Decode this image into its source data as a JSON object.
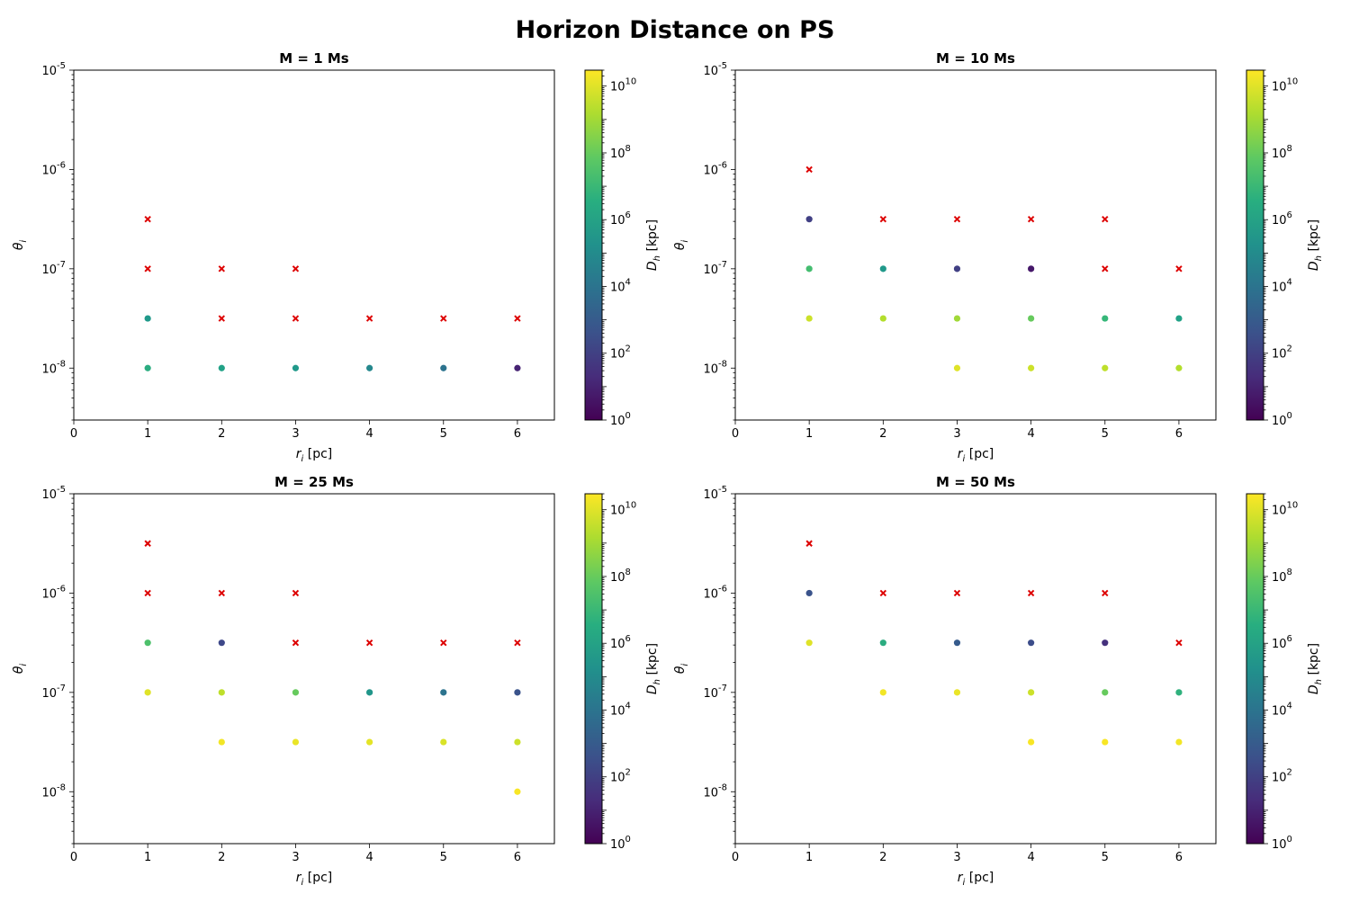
{
  "figure": {
    "suptitle": "Horizon Distance on PS"
  },
  "chart_data": {
    "type": "scatter",
    "shared": {
      "xlabel": "r_i [pc]",
      "ylabel": "θ_i",
      "xlim": [
        0,
        6.5
      ],
      "ylim": [
        3e-09,
        1e-05
      ],
      "yscale": "log",
      "xticks": [
        0,
        1,
        2,
        3,
        4,
        5,
        6
      ],
      "yticks": [
        1e-08,
        1e-07,
        1e-06,
        1e-05
      ],
      "colorbar": {
        "label": "D_h [kpc]",
        "scale": "log",
        "colormap": "viridis",
        "range": [
          1,
          30000000000.0
        ],
        "ticks": [
          1,
          100,
          10000,
          1000000,
          100000000,
          10000000000
        ]
      },
      "failed_marker": {
        "shape": "x",
        "color": "#dd0000"
      },
      "grid": false
    },
    "panels": [
      {
        "title": "M = 1 Ms",
        "points": [
          {
            "x": 1,
            "y": 1e-08,
            "d": 3000000.0
          },
          {
            "x": 1,
            "y": 3.16e-08,
            "d": 400000.0
          },
          {
            "x": 2,
            "y": 1e-08,
            "d": 1000000.0
          },
          {
            "x": 3,
            "y": 1e-08,
            "d": 400000.0
          },
          {
            "x": 4,
            "y": 1e-08,
            "d": 80000.0
          },
          {
            "x": 5,
            "y": 1e-08,
            "d": 10000.0
          },
          {
            "x": 6,
            "y": 1e-08,
            "d": 10
          }
        ],
        "failed": [
          {
            "x": 1,
            "y": 3.16e-07
          },
          {
            "x": 1,
            "y": 1e-07
          },
          {
            "x": 2,
            "y": 1e-07
          },
          {
            "x": 3,
            "y": 1e-07
          },
          {
            "x": 2,
            "y": 3.16e-08
          },
          {
            "x": 3,
            "y": 3.16e-08
          },
          {
            "x": 4,
            "y": 3.16e-08
          },
          {
            "x": 5,
            "y": 3.16e-08
          },
          {
            "x": 6,
            "y": 3.16e-08
          }
        ]
      },
      {
        "title": "M = 10 Ms",
        "points": [
          {
            "x": 1,
            "y": 3.16e-07,
            "d": 100
          },
          {
            "x": 1,
            "y": 1e-07,
            "d": 20000000.0
          },
          {
            "x": 1,
            "y": 3.16e-08,
            "d": 5000000000.0
          },
          {
            "x": 2,
            "y": 1e-07,
            "d": 400000.0
          },
          {
            "x": 2,
            "y": 3.16e-08,
            "d": 2000000000.0
          },
          {
            "x": 3,
            "y": 1e-07,
            "d": 100
          },
          {
            "x": 3,
            "y": 3.16e-08,
            "d": 1000000000.0
          },
          {
            "x": 3,
            "y": 1e-08,
            "d": 10000000000.0
          },
          {
            "x": 4,
            "y": 1e-07,
            "d": 5
          },
          {
            "x": 4,
            "y": 3.16e-08,
            "d": 100000000.0
          },
          {
            "x": 4,
            "y": 1e-08,
            "d": 5000000000.0
          },
          {
            "x": 5,
            "y": 3.16e-08,
            "d": 10000000.0
          },
          {
            "x": 5,
            "y": 1e-08,
            "d": 3000000000.0
          },
          {
            "x": 6,
            "y": 3.16e-08,
            "d": 1000000.0
          },
          {
            "x": 6,
            "y": 1e-08,
            "d": 2000000000.0
          }
        ],
        "failed": [
          {
            "x": 1,
            "y": 1e-06
          },
          {
            "x": 2,
            "y": 3.16e-07
          },
          {
            "x": 3,
            "y": 3.16e-07
          },
          {
            "x": 4,
            "y": 3.16e-07
          },
          {
            "x": 5,
            "y": 3.16e-07
          },
          {
            "x": 5,
            "y": 1e-07
          },
          {
            "x": 6,
            "y": 1e-07
          }
        ]
      },
      {
        "title": "M = 25 Ms",
        "points": [
          {
            "x": 1,
            "y": 3.16e-07,
            "d": 30000000.0
          },
          {
            "x": 1,
            "y": 1e-07,
            "d": 10000000000.0
          },
          {
            "x": 2,
            "y": 3.16e-07,
            "d": 200
          },
          {
            "x": 2,
            "y": 1e-07,
            "d": 3000000000.0
          },
          {
            "x": 2,
            "y": 3.16e-08,
            "d": 20000000000.0
          },
          {
            "x": 3,
            "y": 1e-07,
            "d": 100000000.0
          },
          {
            "x": 3,
            "y": 3.16e-08,
            "d": 15000000000.0
          },
          {
            "x": 4,
            "y": 1e-07,
            "d": 300000.0
          },
          {
            "x": 4,
            "y": 3.16e-08,
            "d": 12000000000.0
          },
          {
            "x": 5,
            "y": 1e-07,
            "d": 10000.0
          },
          {
            "x": 5,
            "y": 3.16e-08,
            "d": 8000000000.0
          },
          {
            "x": 6,
            "y": 1e-07,
            "d": 500
          },
          {
            "x": 6,
            "y": 3.16e-08,
            "d": 5000000000.0
          },
          {
            "x": 6,
            "y": 1e-08,
            "d": 25000000000.0
          }
        ],
        "failed": [
          {
            "x": 1,
            "y": 3.16e-06
          },
          {
            "x": 1,
            "y": 1e-06
          },
          {
            "x": 2,
            "y": 1e-06
          },
          {
            "x": 3,
            "y": 1e-06
          },
          {
            "x": 3,
            "y": 3.16e-07
          },
          {
            "x": 4,
            "y": 3.16e-07
          },
          {
            "x": 5,
            "y": 3.16e-07
          },
          {
            "x": 6,
            "y": 3.16e-07
          }
        ]
      },
      {
        "title": "M = 50 Ms",
        "points": [
          {
            "x": 1,
            "y": 1e-06,
            "d": 500
          },
          {
            "x": 1,
            "y": 3.16e-07,
            "d": 10000000000.0
          },
          {
            "x": 2,
            "y": 3.16e-07,
            "d": 3000000.0
          },
          {
            "x": 2,
            "y": 1e-07,
            "d": 20000000000.0
          },
          {
            "x": 3,
            "y": 3.16e-07,
            "d": 1000
          },
          {
            "x": 3,
            "y": 1e-07,
            "d": 15000000000.0
          },
          {
            "x": 4,
            "y": 3.16e-07,
            "d": 300
          },
          {
            "x": 4,
            "y": 1e-07,
            "d": 5000000000.0
          },
          {
            "x": 4,
            "y": 3.16e-08,
            "d": 25000000000.0
          },
          {
            "x": 5,
            "y": 3.16e-07,
            "d": 30
          },
          {
            "x": 5,
            "y": 1e-07,
            "d": 100000000.0
          },
          {
            "x": 5,
            "y": 3.16e-08,
            "d": 25000000000.0
          },
          {
            "x": 6,
            "y": 1e-07,
            "d": 5000000.0
          },
          {
            "x": 6,
            "y": 3.16e-08,
            "d": 20000000000.0
          }
        ],
        "failed": [
          {
            "x": 1,
            "y": 3.16e-06
          },
          {
            "x": 2,
            "y": 1e-06
          },
          {
            "x": 3,
            "y": 1e-06
          },
          {
            "x": 4,
            "y": 1e-06
          },
          {
            "x": 5,
            "y": 1e-06
          },
          {
            "x": 6,
            "y": 3.16e-07
          }
        ]
      }
    ]
  }
}
